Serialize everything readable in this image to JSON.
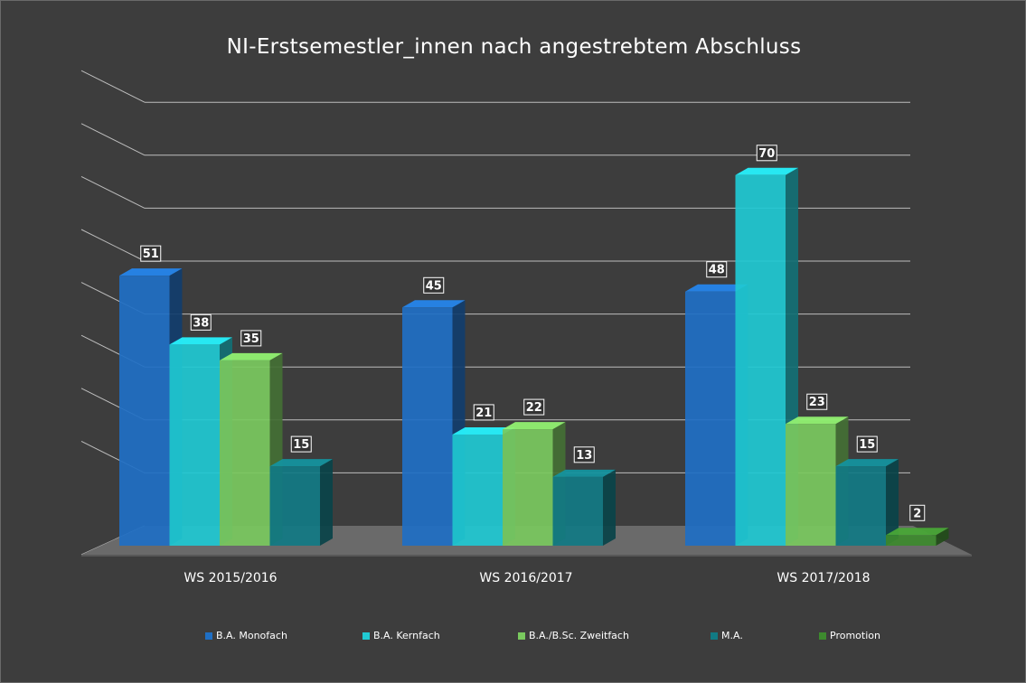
{
  "chart_data": {
    "type": "bar",
    "title": "NI-Erstsemestler_innen nach angestrebtem Abschluss",
    "xlabel": "",
    "ylabel": "",
    "ylim": [
      0,
      80
    ],
    "categories": [
      "WS 2015/2016",
      "WS 2016/2017",
      "WS 2017/2018"
    ],
    "series": [
      {
        "name": "B.A. Monofach",
        "color": "#1f6fc4",
        "values": [
          51,
          45,
          48
        ]
      },
      {
        "name": "B.A. Kernfach",
        "color": "#20c9d2",
        "values": [
          38,
          21,
          70
        ]
      },
      {
        "name": "B.A./B.Sc. Zweitfach",
        "color": "#79c95e",
        "values": [
          35,
          22,
          23
        ]
      },
      {
        "name": "M.A.",
        "color": "#117a84",
        "values": [
          15,
          13,
          15
        ]
      },
      {
        "name": "Promotion",
        "color": "#3d8a2e",
        "values": [
          null,
          null,
          2
        ]
      }
    ],
    "grid": true,
    "legend_position": "bottom"
  }
}
